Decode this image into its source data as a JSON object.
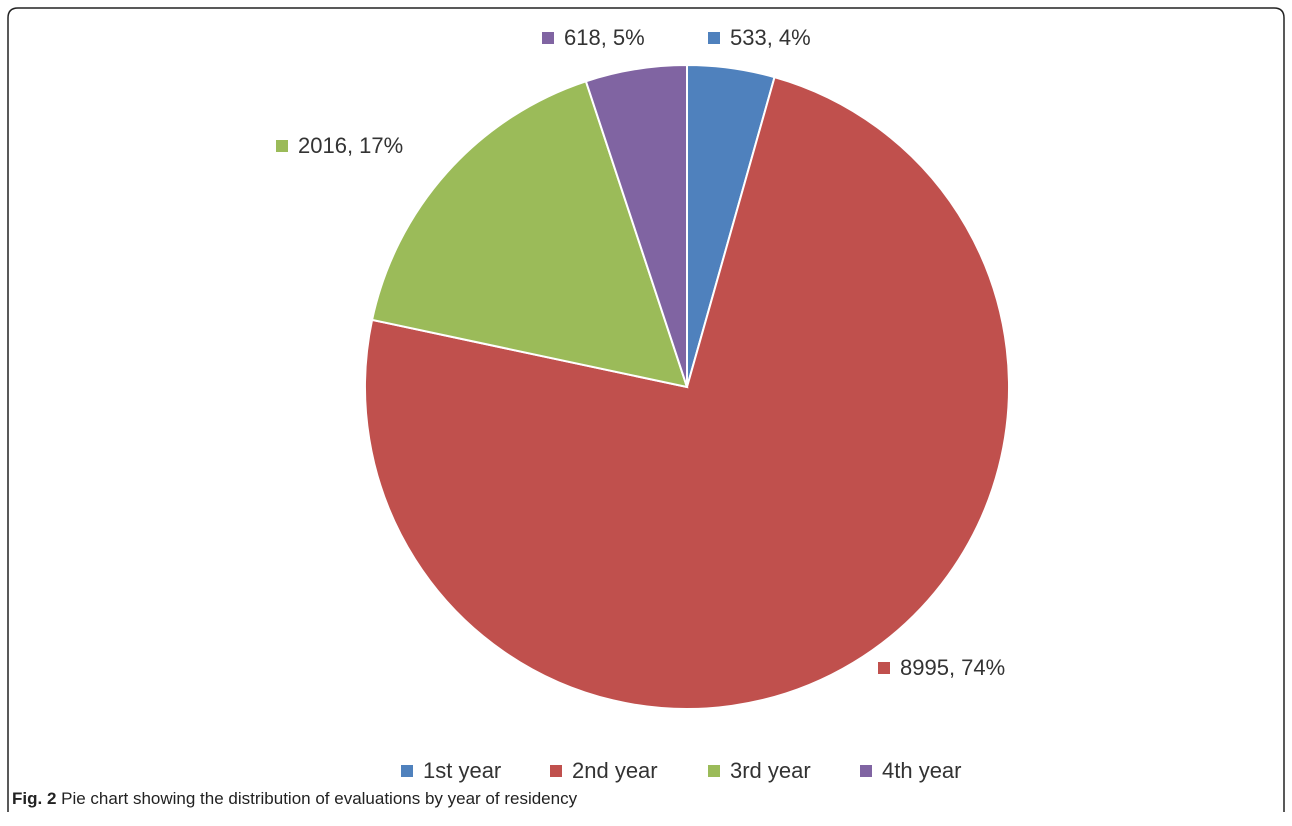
{
  "chart_data": {
    "type": "pie",
    "categories": [
      "1st year",
      "2nd year",
      "3rd year",
      "4th year"
    ],
    "values": [
      533,
      8995,
      2016,
      618
    ],
    "value_labels": [
      "533, 4%",
      "8995, 74%",
      "2016, 17%",
      "618, 5%"
    ],
    "colors": [
      "#4f81bd",
      "#c0504d",
      "#9bbb59",
      "#8064a2"
    ],
    "legend": "bottom"
  },
  "caption": {
    "label": "Fig. 2",
    "text": "Pie chart showing the distribution of evaluations by year of residency"
  }
}
